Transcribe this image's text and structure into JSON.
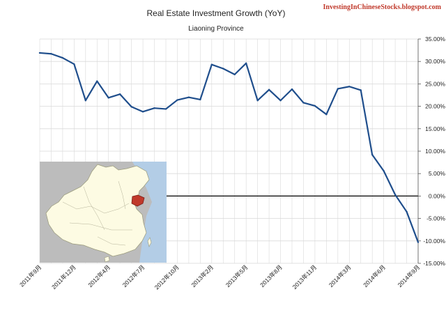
{
  "watermark": "InvestingInChineseStocks.blogspot.com",
  "colors": {
    "line": "#1f4e8c",
    "grid": "#d9d9d9",
    "zero_line": "#000000",
    "map_land": "#fdfbe3",
    "map_bg": "#bcbcbc",
    "map_sea": "#b3cde6",
    "highlight": "#c0392b"
  },
  "inset_map": {
    "description_icon": "china-map-icon",
    "highlight_region_icon": "liaoning-highlight-icon"
  },
  "chart_data": {
    "type": "line",
    "title": "Real Estate Investment Growth (YoY)",
    "subtitle": "Liaoning Province",
    "xlabel": "",
    "ylabel": "",
    "ylim": [
      -15,
      35
    ],
    "y_ticks": [
      "35.00%",
      "30.00%",
      "25.00%",
      "20.00%",
      "15.00%",
      "10.00%",
      "5.00%",
      "0.00%",
      "-5.00%",
      "-10.00%",
      "-15.00%"
    ],
    "y_tick_values": [
      35,
      30,
      25,
      20,
      15,
      10,
      5,
      0,
      -5,
      -10,
      -15
    ],
    "x_tick_labels": [
      "2011年9月",
      "2011年12月",
      "2012年4月",
      "2012年7月",
      "2012年10月",
      "2013年2月",
      "2013年5月",
      "2013年8月",
      "2013年11月",
      "2014年3月",
      "2014年6月",
      "2014年9月"
    ],
    "x_tick_index": [
      0,
      3,
      6,
      9,
      12,
      15,
      18,
      21,
      24,
      27,
      30,
      33
    ],
    "grid": true,
    "legend": "none",
    "series": [
      {
        "values": [
          31.9,
          31.7,
          30.8,
          29.4,
          21.3,
          25.6,
          21.9,
          22.7,
          19.9,
          18.8,
          19.6,
          19.4,
          21.4,
          22.0,
          21.5,
          29.3,
          28.4,
          27.1,
          29.6,
          21.3,
          23.7,
          21.3,
          23.8,
          20.8,
          20.1,
          18.2,
          23.9,
          24.4,
          23.6,
          9.2,
          5.6,
          0.3,
          -3.5,
          -10.3
        ]
      }
    ]
  }
}
